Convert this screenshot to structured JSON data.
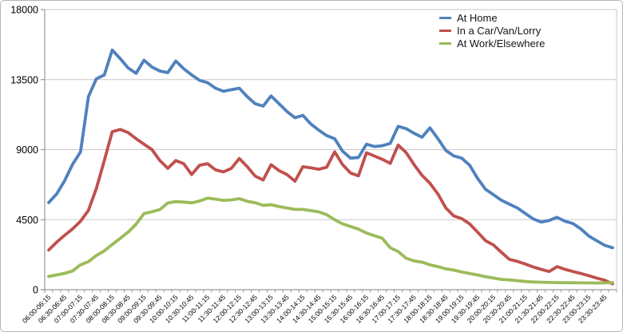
{
  "chart_data": {
    "type": "line",
    "title": "",
    "xlabel": "",
    "ylabel": "",
    "ylim": [
      0,
      18000
    ],
    "y_ticks": [
      0,
      4500,
      9000,
      13500,
      18000
    ],
    "grid": "horizontal",
    "legend_position": "top-right-inside",
    "x_tick_labels_shown_every": 2,
    "x_labels": [
      "06:00-06:15",
      "06:30-06:45",
      "07:00-07:15",
      "07:30-07:45",
      "08:00-08:15",
      "08:30-08:45",
      "09:00-09:15",
      "09:30-09:45",
      "10:00-10:15",
      "10:30-10:45",
      "11:00-11:15",
      "11:30-11:45",
      "12:00-12:15",
      "12:30-12:45",
      "13:00-13:15",
      "13:30-13:45",
      "14:00-14:15",
      "14:30-14:45",
      "15:00-15:15",
      "15:30-15:45",
      "16:00-16:15",
      "16:30-16:45",
      "17:00-17:15",
      "17:30-17:45",
      "18:00-18:15",
      "18:30-18:45",
      "19:00-19:15",
      "19:30-19:45",
      "20:00-20:15",
      "20:30-20:45",
      "21:00-21:15",
      "21:30-21:45",
      "22:00-22:15",
      "22:30-22:45",
      "23:00-23:15",
      "23:30-23:45"
    ],
    "series": [
      {
        "name": "At Home",
        "color": "#4F81BD",
        "values": [
          5600,
          6150,
          7000,
          8050,
          8850,
          12400,
          13550,
          13800,
          15400,
          14850,
          14250,
          13900,
          14750,
          14300,
          14050,
          13950,
          14700,
          14200,
          13800,
          13450,
          13300,
          12950,
          12750,
          12850,
          12950,
          12400,
          11950,
          11800,
          12450,
          11950,
          11450,
          11050,
          11200,
          10650,
          10250,
          9900,
          9700,
          8900,
          8450,
          8500,
          9350,
          9200,
          9250,
          9400,
          10500,
          10350,
          10050,
          9800,
          10400,
          9700,
          8950,
          8600,
          8450,
          8000,
          7150,
          6450,
          6100,
          5750,
          5500,
          5250,
          4900,
          4550,
          4350,
          4450,
          4650,
          4400,
          4250,
          3900,
          3450,
          3150,
          2850,
          2700
        ]
      },
      {
        "name": "In a Car/Van/Lorry",
        "color": "#C0504D",
        "values": [
          2550,
          3050,
          3500,
          3900,
          4400,
          5100,
          6500,
          8300,
          10150,
          10300,
          10100,
          9700,
          9350,
          9000,
          8300,
          7800,
          8300,
          8100,
          7400,
          8000,
          8100,
          7700,
          7570,
          7800,
          8430,
          7900,
          7300,
          7050,
          8030,
          7650,
          7400,
          6970,
          7900,
          7830,
          7740,
          7870,
          8860,
          8040,
          7500,
          7320,
          8800,
          8590,
          8380,
          8120,
          9300,
          8810,
          8040,
          7350,
          6840,
          6150,
          5250,
          4740,
          4570,
          4230,
          3700,
          3150,
          2870,
          2400,
          1950,
          1820,
          1650,
          1460,
          1310,
          1170,
          1480,
          1310,
          1170,
          1040,
          900,
          750,
          610,
          380
        ]
      },
      {
        "name": "At Work/Elsewhere",
        "color": "#9BBB59",
        "values": [
          850,
          950,
          1050,
          1200,
          1600,
          1800,
          2200,
          2500,
          2900,
          3300,
          3700,
          4210,
          4890,
          5010,
          5150,
          5575,
          5660,
          5630,
          5580,
          5700,
          5880,
          5820,
          5740,
          5770,
          5850,
          5680,
          5590,
          5420,
          5460,
          5340,
          5250,
          5160,
          5160,
          5080,
          5000,
          4820,
          4500,
          4230,
          4060,
          3890,
          3640,
          3470,
          3300,
          2700,
          2450,
          2020,
          1850,
          1770,
          1600,
          1480,
          1340,
          1260,
          1140,
          1040,
          950,
          830,
          750,
          660,
          630,
          580,
          530,
          500,
          480,
          465,
          455,
          450,
          445,
          440,
          435,
          430,
          440,
          460
        ]
      }
    ],
    "style": {
      "gridline_color": "#c9c9c9",
      "axis_color": "#9a9a9a",
      "label_color": "#000000",
      "line_width": 3.8
    }
  }
}
